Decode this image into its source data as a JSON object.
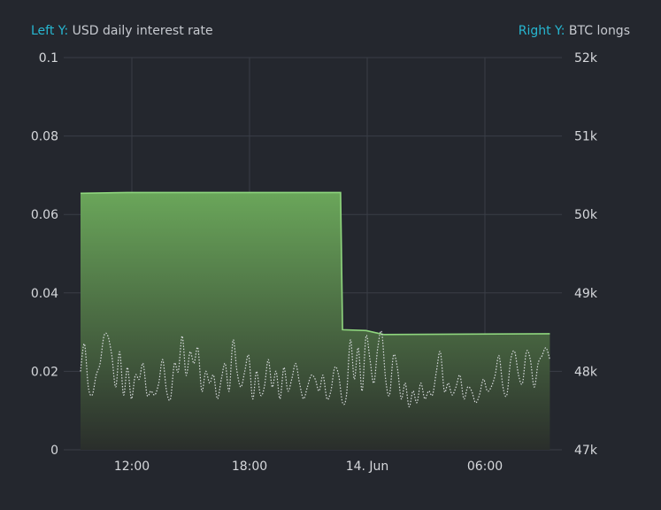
{
  "legend": {
    "left_key": "Left Y:",
    "left_label": "USD daily interest rate",
    "right_key": "Right Y:",
    "right_label": "BTC longs"
  },
  "colors": {
    "background": "#24272e",
    "grid": "#3a3e47",
    "area_line": "#8fd67e",
    "area_fill_top": "#6aa65a",
    "area_fill_bottom": "#2a2e2b",
    "rate_line": "#d9dcdf",
    "legend_key": "#27b7d1"
  },
  "chart_data": {
    "type": "area",
    "grid": true,
    "legend_position": "top",
    "x_ticks": [
      "12:00",
      "18:00",
      "14. Jun",
      "06:00"
    ],
    "left_axis": {
      "label": "USD daily interest rate",
      "ticks": [
        "0",
        "0.02",
        "0.04",
        "0.06",
        "0.08",
        "0.1"
      ],
      "range": [
        0,
        0.1
      ]
    },
    "right_axis": {
      "label": "BTC longs",
      "ticks": [
        "47k",
        "48k",
        "49k",
        "50k",
        "51k",
        "52k"
      ],
      "range": [
        47000,
        52000
      ]
    },
    "series": [
      {
        "name": "BTC longs",
        "axis": "right",
        "style": "area",
        "x_hours": [
          0,
          2.4,
          13.3,
          13.4,
          14.6,
          15.5,
          24
        ],
        "values": [
          50270,
          50280,
          50280,
          48530,
          48520,
          48470,
          48480
        ]
      },
      {
        "name": "USD daily interest rate",
        "axis": "left",
        "style": "dotted-line",
        "x_hours": [
          0,
          0.2,
          0.4,
          0.6,
          0.8,
          1.0,
          1.2,
          1.4,
          1.6,
          1.8,
          2.0,
          2.2,
          2.4,
          2.6,
          2.8,
          3.0,
          3.2,
          3.4,
          3.6,
          3.8,
          4.0,
          4.2,
          4.4,
          4.6,
          4.8,
          5.0,
          5.2,
          5.4,
          5.6,
          5.8,
          6.0,
          6.2,
          6.4,
          6.6,
          6.8,
          7.0,
          7.2,
          7.4,
          7.6,
          7.8,
          8.0,
          8.2,
          8.4,
          8.6,
          8.8,
          9.0,
          9.2,
          9.4,
          9.6,
          9.8,
          10.0,
          10.2,
          10.4,
          10.6,
          10.8,
          11.0,
          11.2,
          11.4,
          11.6,
          11.8,
          12.0,
          12.2,
          12.4,
          12.6,
          12.8,
          13.0,
          13.2,
          13.4,
          13.6,
          13.8,
          14.0,
          14.2,
          14.4,
          14.6,
          14.8,
          15.0,
          15.2,
          15.4,
          15.6,
          15.8,
          16.0,
          16.2,
          16.4,
          16.6,
          16.8,
          17.0,
          17.2,
          17.4,
          17.6,
          17.8,
          18.0,
          18.2,
          18.4,
          18.6,
          18.8,
          19.0,
          19.2,
          19.4,
          19.6,
          19.8,
          20.0,
          20.2,
          20.4,
          20.6,
          20.8,
          21.0,
          21.2,
          21.4,
          21.6,
          21.8,
          22.0,
          22.2,
          22.4,
          22.6,
          22.8,
          23.0,
          23.2,
          23.4,
          23.6,
          23.8,
          24.0
        ],
        "values": [
          0.02,
          0.027,
          0.016,
          0.014,
          0.019,
          0.022,
          0.029,
          0.029,
          0.024,
          0.016,
          0.025,
          0.014,
          0.021,
          0.013,
          0.019,
          0.018,
          0.022,
          0.014,
          0.015,
          0.014,
          0.017,
          0.023,
          0.015,
          0.013,
          0.022,
          0.02,
          0.029,
          0.019,
          0.025,
          0.022,
          0.026,
          0.015,
          0.02,
          0.017,
          0.019,
          0.013,
          0.018,
          0.022,
          0.015,
          0.028,
          0.02,
          0.016,
          0.02,
          0.024,
          0.013,
          0.02,
          0.014,
          0.016,
          0.023,
          0.016,
          0.02,
          0.013,
          0.021,
          0.015,
          0.018,
          0.022,
          0.017,
          0.013,
          0.016,
          0.019,
          0.018,
          0.015,
          0.019,
          0.013,
          0.015,
          0.021,
          0.019,
          0.012,
          0.014,
          0.028,
          0.018,
          0.026,
          0.015,
          0.029,
          0.023,
          0.017,
          0.026,
          0.03,
          0.018,
          0.014,
          0.024,
          0.021,
          0.013,
          0.017,
          0.011,
          0.015,
          0.012,
          0.017,
          0.013,
          0.015,
          0.014,
          0.02,
          0.025,
          0.015,
          0.017,
          0.014,
          0.016,
          0.019,
          0.013,
          0.016,
          0.015,
          0.012,
          0.014,
          0.018,
          0.015,
          0.016,
          0.019,
          0.024,
          0.016,
          0.014,
          0.023,
          0.025,
          0.019,
          0.017,
          0.025,
          0.023,
          0.016,
          0.022,
          0.024,
          0.026,
          0.023
        ]
      }
    ]
  }
}
